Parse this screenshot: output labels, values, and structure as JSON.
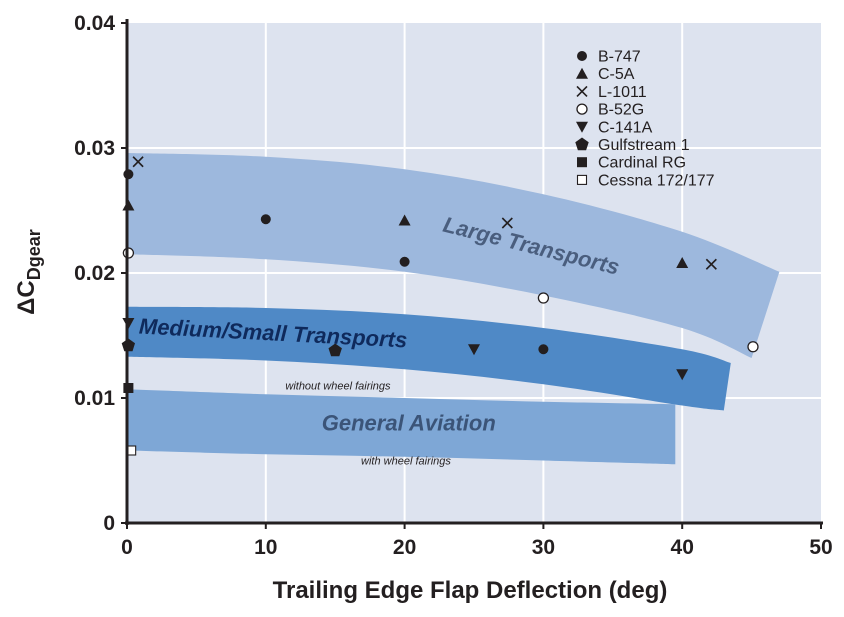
{
  "chart_data": {
    "type": "scatter",
    "xlabel": "Trailing Edge Flap Deflection (deg)",
    "ylabel": "ΔC",
    "ylabel_sub": "Dgear",
    "xlim": [
      0,
      50
    ],
    "ylim": [
      0,
      0.04
    ],
    "x_ticks": [
      "0",
      "10",
      "20",
      "30",
      "40",
      "50"
    ],
    "y_ticks": [
      "0",
      "0.01",
      "0.02",
      "0.03",
      "0.04"
    ],
    "grid": true,
    "legend_position": "top-right",
    "colors": {
      "plot_bg": "#dde3ef",
      "grid": "#ffffff",
      "large_band": "#9db8dd",
      "medium_band": "#4f89c6",
      "ga_band": "#7ea7d6",
      "large_label": "#4a5e7e",
      "medium_label": "#0f2a5c",
      "ga_label": "#3b5478",
      "marker": "#231f20"
    },
    "bands": [
      {
        "name": "Large Transports",
        "color_key": "large_band",
        "label_color_key": "large_label",
        "upper": [
          [
            0,
            0.0296
          ],
          [
            10,
            0.0293
          ],
          [
            20,
            0.0283
          ],
          [
            30,
            0.0263
          ],
          [
            40,
            0.0233
          ],
          [
            47,
            0.0201
          ]
        ],
        "lower": [
          [
            0,
            0.0215
          ],
          [
            10,
            0.0211
          ],
          [
            20,
            0.0201
          ],
          [
            30,
            0.0182
          ],
          [
            40,
            0.0156
          ],
          [
            45,
            0.0132
          ]
        ],
        "label": {
          "x": 29,
          "y": 0.0216,
          "rotate": 14
        }
      },
      {
        "name": "Medium/Small Transports",
        "color_key": "medium_band",
        "label_color_key": "medium_label",
        "upper": [
          [
            0,
            0.0173
          ],
          [
            10,
            0.0172
          ],
          [
            20,
            0.0167
          ],
          [
            30,
            0.0156
          ],
          [
            40,
            0.0139
          ],
          [
            43.5,
            0.0128
          ]
        ],
        "lower": [
          [
            0,
            0.0133
          ],
          [
            10,
            0.013
          ],
          [
            20,
            0.0123
          ],
          [
            30,
            0.0111
          ],
          [
            40,
            0.0094
          ],
          [
            43,
            0.009
          ]
        ],
        "label": {
          "x": 10.5,
          "y": 0.0146,
          "rotate": 3
        }
      },
      {
        "name": "General Aviation",
        "color_key": "ga_band",
        "label_color_key": "ga_label",
        "upper": [
          [
            0,
            0.0107
          ],
          [
            10,
            0.0103
          ],
          [
            20,
            0.01
          ],
          [
            30,
            0.0097
          ],
          [
            39.5,
            0.0095
          ]
        ],
        "lower": [
          [
            0,
            0.0058
          ],
          [
            10,
            0.0055
          ],
          [
            20,
            0.0053
          ],
          [
            30,
            0.005
          ],
          [
            39.5,
            0.0047
          ]
        ],
        "label": {
          "x": 20.3,
          "y": 0.0074,
          "rotate": 0
        }
      }
    ],
    "annotations": [
      {
        "text": "without wheel fairings",
        "x": 15.2,
        "y": 0.0107
      },
      {
        "text": "with wheel fairings",
        "x": 20.1,
        "y": 0.0047
      }
    ],
    "series": [
      {
        "name": "B-747",
        "marker": "circle",
        "points": [
          [
            0.1,
            0.0279
          ],
          [
            10,
            0.0243
          ],
          [
            20,
            0.0209
          ],
          [
            30,
            0.0139
          ]
        ]
      },
      {
        "name": "C-5A",
        "marker": "triangle-up",
        "points": [
          [
            0.1,
            0.0254
          ],
          [
            20,
            0.0242
          ],
          [
            40,
            0.0208
          ]
        ]
      },
      {
        "name": "L-1011",
        "marker": "x",
        "points": [
          [
            0.8,
            0.0289
          ],
          [
            27.4,
            0.024
          ],
          [
            42.1,
            0.0207
          ]
        ]
      },
      {
        "name": "B-52G",
        "marker": "circle-open",
        "points": [
          [
            0.1,
            0.0216
          ],
          [
            30,
            0.018
          ],
          [
            45.1,
            0.0141
          ]
        ]
      },
      {
        "name": "C-141A",
        "marker": "triangle-down",
        "points": [
          [
            0.1,
            0.016
          ],
          [
            25,
            0.0139
          ],
          [
            40,
            0.0119
          ]
        ]
      },
      {
        "name": "Gulfstream 1",
        "marker": "pentagon",
        "points": [
          [
            0.1,
            0.0142
          ],
          [
            15,
            0.0138
          ]
        ]
      },
      {
        "name": "Cardinal RG",
        "marker": "square",
        "points": [
          [
            0.1,
            0.0108
          ]
        ]
      },
      {
        "name": "Cessna 172/177",
        "marker": "square-open",
        "points": [
          [
            0.3,
            0.0058
          ]
        ]
      }
    ]
  }
}
